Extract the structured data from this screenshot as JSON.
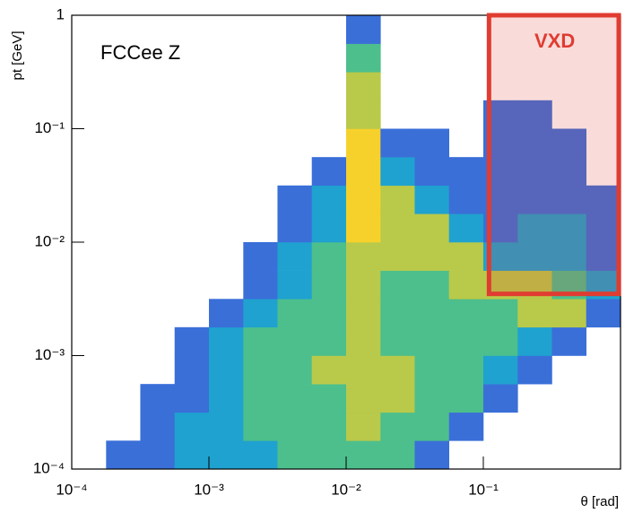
{
  "chart_data": {
    "type": "heatmap",
    "ylabel": "pt [GeV]",
    "xlabel": "θ [rad]",
    "xlog": true,
    "ylog": true,
    "xlim": [
      0.0001,
      1
    ],
    "ylim": [
      0.0001,
      1
    ],
    "xticks": [
      {
        "value": 0.0001,
        "label": "10⁻⁴"
      },
      {
        "value": 0.001,
        "label": "10⁻³"
      },
      {
        "value": 0.01,
        "label": "10⁻²"
      },
      {
        "value": 0.1,
        "label": "10⁻¹"
      }
    ],
    "yticks": [
      {
        "value": 0.0001,
        "label": "10⁻⁴"
      },
      {
        "value": 0.001,
        "label": "10⁻³"
      },
      {
        "value": 0.01,
        "label": "10⁻²"
      },
      {
        "value": 0.1,
        "label": "10⁻¹"
      },
      1
    ],
    "xbins": [
      0.0001,
      0.000178,
      0.000316,
      0.000562,
      0.001,
      0.00178,
      0.00316,
      0.00562,
      0.01,
      0.0178,
      0.0316,
      0.0562,
      0.1,
      0.178,
      0.316,
      0.562,
      1
    ],
    "ybins": [
      0.0001,
      0.000178,
      0.000316,
      0.000562,
      0.001,
      0.00178,
      0.00316,
      0.00562,
      0.01,
      0.0178,
      0.0316,
      0.0562,
      0.1,
      0.178,
      0.316,
      0.562,
      1
    ],
    "colorscale": [
      "#3a6fd8",
      "#1fa2cf",
      "#4dbf8c",
      "#b9c94a",
      "#f7d12b"
    ],
    "z": [
      [
        0,
        1,
        1,
        2,
        2,
        2,
        3,
        3,
        3,
        3,
        1,
        0,
        0,
        0,
        0,
        0
      ],
      [
        0,
        0,
        1,
        2,
        2,
        3,
        3,
        3,
        4,
        3,
        3,
        1,
        0,
        0,
        0,
        0
      ],
      [
        0,
        0,
        1,
        1,
        2,
        3,
        3,
        3,
        4,
        4,
        3,
        3,
        1,
        0,
        0,
        0
      ],
      [
        0,
        0,
        0,
        1,
        2,
        3,
        3,
        4,
        4,
        4,
        3,
        3,
        2,
        1,
        0,
        0
      ],
      [
        0,
        0,
        0,
        1,
        2,
        3,
        3,
        3,
        4,
        3,
        3,
        3,
        3,
        2,
        1,
        0
      ],
      [
        0,
        0,
        0,
        0,
        1,
        2,
        3,
        3,
        4,
        3,
        3,
        3,
        3,
        4,
        4,
        1
      ],
      [
        0,
        0,
        0,
        0,
        0,
        1,
        2,
        3,
        4,
        3,
        3,
        4,
        4,
        4,
        3,
        2
      ],
      [
        0,
        0,
        0,
        0,
        0,
        1,
        2,
        3,
        4,
        4,
        4,
        4,
        2,
        2,
        2,
        1
      ],
      [
        0,
        0,
        0,
        0,
        0,
        0,
        1,
        2,
        5,
        4,
        4,
        2,
        1,
        2,
        2,
        1
      ],
      [
        0,
        0,
        0,
        0,
        0,
        0,
        1,
        2,
        5,
        4,
        2,
        1,
        1,
        1,
        1,
        1
      ],
      [
        0,
        0,
        0,
        0,
        0,
        0,
        0,
        1,
        5,
        2,
        1,
        1,
        1,
        1,
        1,
        0
      ],
      [
        0,
        0,
        0,
        0,
        0,
        0,
        0,
        0,
        5,
        1,
        1,
        0,
        1,
        1,
        1,
        0
      ],
      [
        0,
        0,
        0,
        0,
        0,
        0,
        0,
        0,
        4,
        0,
        0,
        0,
        1,
        1,
        0,
        0
      ],
      [
        0,
        0,
        0,
        0,
        0,
        0,
        0,
        0,
        4,
        0,
        0,
        0,
        0,
        0,
        0,
        0
      ],
      [
        0,
        0,
        0,
        0,
        0,
        0,
        0,
        0,
        3,
        0,
        0,
        0,
        0,
        0,
        0,
        0
      ],
      [
        0,
        0,
        0,
        0,
        0,
        0,
        0,
        0,
        1,
        0,
        0,
        0,
        0,
        0,
        0,
        0
      ]
    ],
    "annotation": "FCCee Z",
    "region": {
      "label": "VXD",
      "x": [
        0.11,
        1
      ],
      "y": [
        0.0035,
        1
      ],
      "color": "#e03c31"
    }
  }
}
